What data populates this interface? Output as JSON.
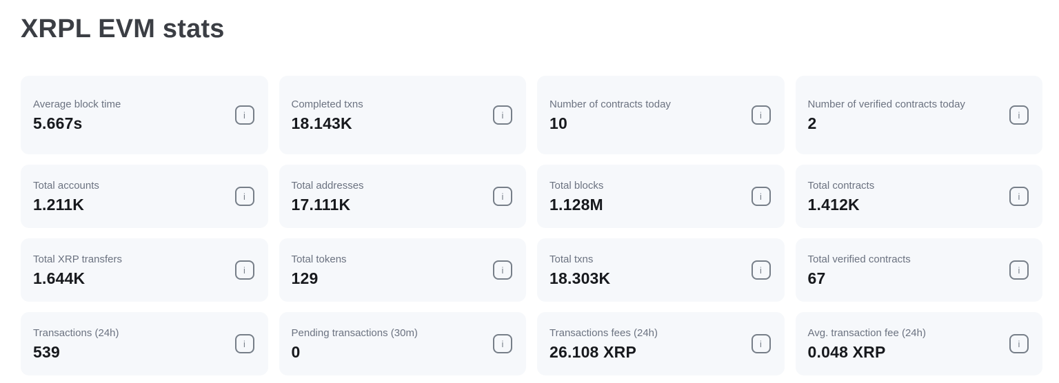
{
  "page": {
    "title": "XRPL EVM stats"
  },
  "colors": {
    "card_background": "#f6f8fb",
    "label_text": "#6b7280",
    "value_text": "#17191d",
    "title_text": "#3b3e44",
    "info_icon": "#767e88"
  },
  "icons": {
    "info_glyph": "i"
  },
  "stats": {
    "cards": [
      {
        "label": "Average block time",
        "value": "5.667s"
      },
      {
        "label": "Completed txns",
        "value": "18.143K"
      },
      {
        "label": "Number of contracts today",
        "value": "10"
      },
      {
        "label": "Number of verified contracts today",
        "value": "2"
      },
      {
        "label": "Total accounts",
        "value": "1.211K"
      },
      {
        "label": "Total addresses",
        "value": "17.111K"
      },
      {
        "label": "Total blocks",
        "value": "1.128M"
      },
      {
        "label": "Total contracts",
        "value": "1.412K"
      },
      {
        "label": "Total XRP transfers",
        "value": "1.644K"
      },
      {
        "label": "Total tokens",
        "value": "129"
      },
      {
        "label": "Total txns",
        "value": "18.303K"
      },
      {
        "label": "Total verified contracts",
        "value": "67"
      },
      {
        "label": "Transactions (24h)",
        "value": "539"
      },
      {
        "label": "Pending transactions (30m)",
        "value": "0"
      },
      {
        "label": "Transactions fees (24h)",
        "value": "26.108 XRP"
      },
      {
        "label": "Avg. transaction fee (24h)",
        "value": "0.048 XRP"
      }
    ]
  }
}
